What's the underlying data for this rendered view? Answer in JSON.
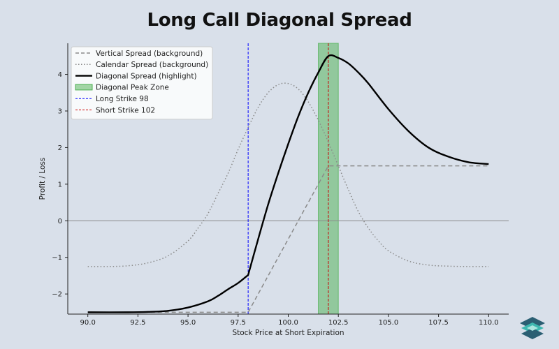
{
  "header": {
    "title": "Long Call Diagonal Spread"
  },
  "colors": {
    "background": "#d9e0ea",
    "vertical": "#8a8a8a",
    "calendar": "#8a8a8a",
    "diagonal": "#000000",
    "peak_zone": "#4caf50",
    "long_strike": "#0000ff",
    "short_strike": "#cc0000",
    "zero_line": "#8a8a8a"
  },
  "chart_data": {
    "type": "line",
    "title": "Long Call Diagonal Spread",
    "xlabel": "Stock Price at Short Expiration",
    "ylabel": "Profit / Loss",
    "xlim": [
      89.0,
      111.0
    ],
    "ylim": [
      -2.55,
      4.85
    ],
    "xticks": [
      90.0,
      92.5,
      95.0,
      97.5,
      100.0,
      102.5,
      105.0,
      107.5,
      110.0
    ],
    "xtick_labels": [
      "90.0",
      "92.5",
      "95.0",
      "97.5",
      "100.0",
      "102.5",
      "105.0",
      "107.5",
      "110.0"
    ],
    "yticks": [
      -2,
      -1,
      0,
      1,
      2,
      3,
      4
    ],
    "ytick_labels": [
      "−2",
      "−1",
      "0",
      "1",
      "2",
      "3",
      "4"
    ],
    "grid": false,
    "legend_position": "top-left",
    "horizontal_line": 0,
    "long_strike": 98,
    "short_strike": 102,
    "peak_zone": [
      101.5,
      102.5
    ],
    "series": [
      {
        "name": "Vertical Spread (background)",
        "style": "dashed",
        "x": [
          90.0,
          98.0,
          102.0,
          110.0
        ],
        "y": [
          -2.5,
          -2.5,
          1.5,
          1.5
        ]
      },
      {
        "name": "Calendar Spread (background)",
        "style": "dotted",
        "x": [
          90.0,
          91.0,
          92.0,
          93.0,
          94.0,
          95.0,
          95.5,
          96.0,
          96.5,
          97.0,
          97.5,
          98.0,
          98.5,
          99.0,
          99.5,
          100.0,
          100.5,
          101.0,
          101.5,
          102.0,
          102.5,
          103.0,
          103.5,
          104.0,
          104.5,
          105.0,
          106.0,
          107.0,
          108.0,
          109.0,
          110.0
        ],
        "y": [
          -1.25,
          -1.25,
          -1.23,
          -1.15,
          -0.96,
          -0.55,
          -0.2,
          0.2,
          0.75,
          1.3,
          1.95,
          2.55,
          3.1,
          3.5,
          3.72,
          3.75,
          3.6,
          3.25,
          2.75,
          2.15,
          1.5,
          0.85,
          0.25,
          -0.2,
          -0.55,
          -0.82,
          -1.1,
          -1.21,
          -1.24,
          -1.25,
          -1.25
        ]
      },
      {
        "name": "Diagonal Spread (highlight)",
        "style": "solid",
        "x": [
          90.0,
          92.0,
          93.0,
          94.0,
          95.0,
          96.0,
          96.5,
          97.0,
          97.5,
          98.0,
          98.5,
          99.0,
          99.5,
          100.0,
          100.5,
          101.0,
          101.5,
          102.0,
          102.5,
          103.0,
          103.5,
          104.0,
          105.0,
          106.0,
          107.0,
          108.0,
          109.0,
          110.0
        ],
        "y": [
          -2.5,
          -2.5,
          -2.49,
          -2.46,
          -2.37,
          -2.2,
          -2.05,
          -1.87,
          -1.7,
          -1.48,
          -0.5,
          0.45,
          1.3,
          2.1,
          2.85,
          3.5,
          4.05,
          4.5,
          4.45,
          4.3,
          4.05,
          3.75,
          3.05,
          2.45,
          2.0,
          1.75,
          1.6,
          1.55
        ]
      }
    ],
    "legend": [
      {
        "label": "Vertical Spread (background)",
        "kind": "dashed"
      },
      {
        "label": "Calendar Spread (background)",
        "kind": "dotted"
      },
      {
        "label": "Diagonal Spread (highlight)",
        "kind": "solid"
      },
      {
        "label": "Diagonal Peak Zone",
        "kind": "patch"
      },
      {
        "label": "Long Strike 98",
        "kind": "vline-blue"
      },
      {
        "label": "Short Strike 102",
        "kind": "vline-red"
      }
    ]
  }
}
